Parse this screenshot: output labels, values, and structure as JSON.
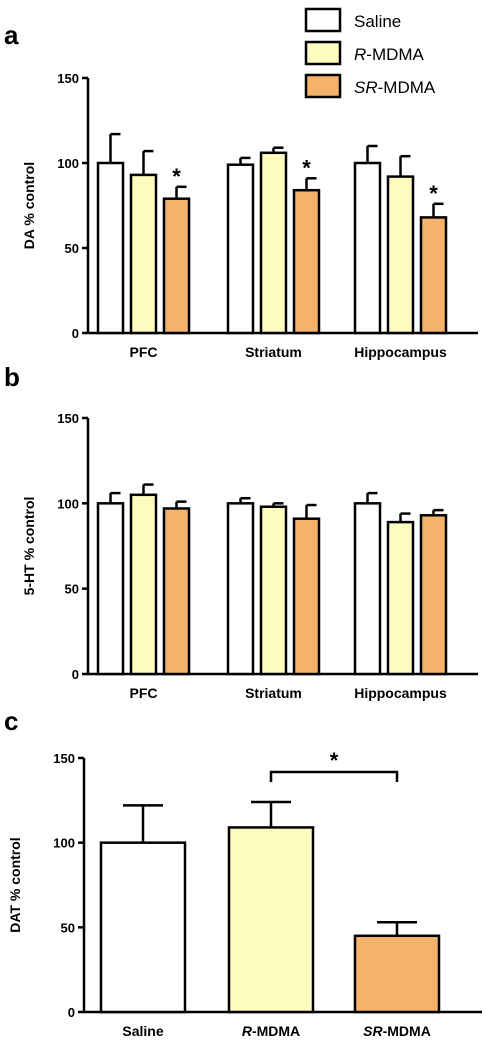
{
  "colors": {
    "saline": "#ffffff",
    "r_mdma": "#fefbbf",
    "sr_mdma": "#f5b26b"
  },
  "legend": [
    {
      "prefix": "",
      "italic": "",
      "label": "Saline",
      "color": "#ffffff"
    },
    {
      "prefix": "",
      "italic": "R",
      "label": "-MDMA",
      "color": "#fefbbf"
    },
    {
      "prefix": "",
      "italic": "SR",
      "label": "-MDMA",
      "color": "#f5b26b"
    }
  ],
  "chart_data": [
    {
      "panel": "a",
      "type": "bar",
      "ylabel": "DA % control",
      "ylim": [
        0,
        150
      ],
      "yticks": [
        0,
        50,
        100,
        150
      ],
      "categories": [
        "PFC",
        "Striatum",
        "Hippocampus"
      ],
      "series": [
        {
          "name": "Saline",
          "values": [
            100,
            99,
            100
          ],
          "errors": [
            17,
            4,
            10
          ],
          "color": "#ffffff"
        },
        {
          "name": "R-MDMA",
          "values": [
            93,
            106,
            92
          ],
          "errors": [
            14,
            3,
            12
          ],
          "color": "#fefbbf"
        },
        {
          "name": "SR-MDMA",
          "values": [
            79,
            84,
            68
          ],
          "errors": [
            7,
            7,
            8
          ],
          "color": "#f5b26b",
          "significant": [
            true,
            true,
            true
          ]
        }
      ]
    },
    {
      "panel": "b",
      "type": "bar",
      "ylabel": "5-HT % control",
      "ylim": [
        0,
        150
      ],
      "yticks": [
        0,
        50,
        100,
        150
      ],
      "categories": [
        "PFC",
        "Striatum",
        "Hippocampus"
      ],
      "series": [
        {
          "name": "Saline",
          "values": [
            100,
            100,
            100
          ],
          "errors": [
            6,
            3,
            6
          ],
          "color": "#ffffff"
        },
        {
          "name": "R-MDMA",
          "values": [
            105,
            98,
            89
          ],
          "errors": [
            6,
            2,
            5
          ],
          "color": "#fefbbf"
        },
        {
          "name": "SR-MDMA",
          "values": [
            97,
            91,
            93
          ],
          "errors": [
            4,
            8,
            3
          ],
          "color": "#f5b26b"
        }
      ]
    },
    {
      "panel": "c",
      "type": "bar",
      "ylabel": "DAT % control",
      "ylim": [
        0,
        150
      ],
      "yticks": [
        0,
        50,
        100,
        150
      ],
      "categories": [
        "Saline",
        "R-MDMA",
        "SR-MDMA"
      ],
      "category_italic_prefix": [
        "",
        "R",
        "SR"
      ],
      "category_suffix": [
        "Saline",
        "-MDMA",
        "-MDMA"
      ],
      "series": [
        {
          "name": "DAT",
          "values": [
            100,
            109,
            45
          ],
          "errors": [
            22,
            15,
            8
          ],
          "colors": [
            "#ffffff",
            "#fefbbf",
            "#f5b26b"
          ]
        }
      ],
      "annotation": {
        "type": "bracket",
        "from": 1,
        "to": 2,
        "label": "*"
      }
    }
  ]
}
